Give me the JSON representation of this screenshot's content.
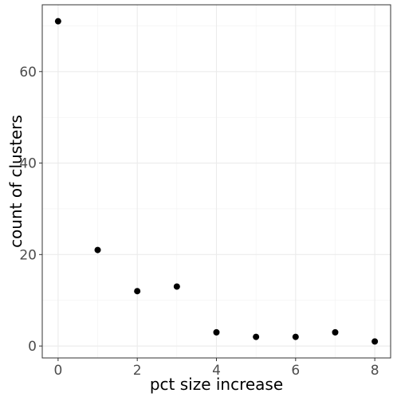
{
  "chart_data": {
    "type": "scatter",
    "title": "",
    "xlabel": "pct size increase",
    "ylabel": "count of clusters",
    "xlim": [
      -0.4,
      8.4
    ],
    "ylim": [
      -2.6,
      74.6
    ],
    "x_ticks": [
      0,
      2,
      4,
      6,
      8
    ],
    "y_ticks": [
      0,
      20,
      40,
      60
    ],
    "grid": true,
    "series": [
      {
        "x": [
          0,
          1,
          2,
          3,
          4,
          5,
          6,
          7,
          8
        ],
        "y": [
          71,
          21,
          12,
          13,
          3,
          2,
          2,
          3,
          1
        ]
      }
    ]
  }
}
